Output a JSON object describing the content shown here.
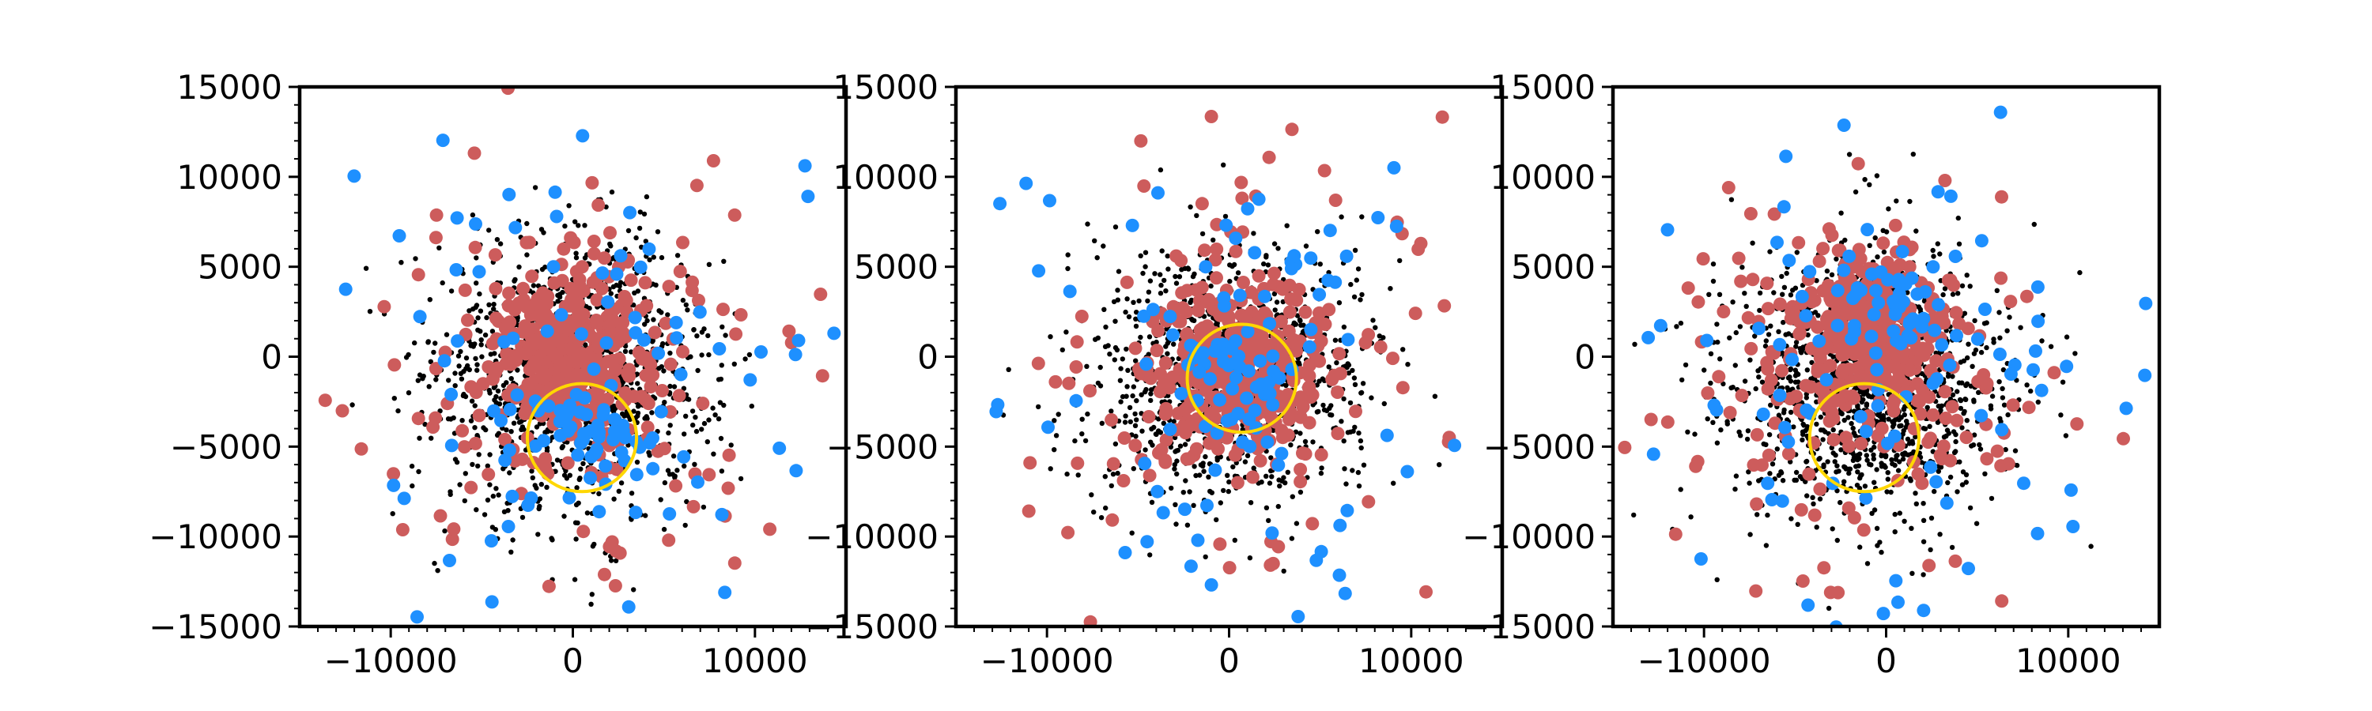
{
  "chart_data": [
    {
      "type": "scatter",
      "title": "",
      "xlabel": "",
      "ylabel": "",
      "xlim": [
        -15000,
        15000
      ],
      "ylim": [
        -15000,
        15000
      ],
      "xticks": [
        -10000,
        0,
        10000
      ],
      "xtick_labels": [
        "−10000",
        "0",
        "10000"
      ],
      "yticks": [
        -15000,
        -10000,
        -5000,
        0,
        5000,
        10000,
        15000
      ],
      "ytick_labels": [
        "−15000",
        "−10000",
        "−5000",
        "0",
        "5000",
        "10000",
        "15000"
      ],
      "grid": false,
      "circle": {
        "cx": 500,
        "cy": -4500,
        "r": 3000
      },
      "distributions": [
        {
          "color": "#000000",
          "count": 1300,
          "center": [
            0,
            -1000
          ],
          "spread": 3800
        },
        {
          "color": "#cd5c5c",
          "count": 300,
          "center": [
            0,
            0
          ],
          "spread": 2200
        },
        {
          "color": "#cd5c5c",
          "count": 150,
          "center": [
            0,
            -1000
          ],
          "spread": 5500
        },
        {
          "color": "#1e90ff",
          "count": 90,
          "center": [
            0,
            -1000
          ],
          "spread": 6500
        },
        {
          "color": "#1e90ff",
          "count": 40,
          "center": [
            500,
            -4000
          ],
          "spread": 1200
        }
      ]
    },
    {
      "type": "scatter",
      "title": "",
      "xlabel": "",
      "ylabel": "",
      "xlim": [
        -15000,
        15000
      ],
      "ylim": [
        -15000,
        15000
      ],
      "xticks": [
        -10000,
        0,
        10000
      ],
      "xtick_labels": [
        "−10000",
        "0",
        "10000"
      ],
      "yticks": [
        -15000,
        -10000,
        -5000,
        0,
        5000,
        10000,
        15000
      ],
      "ytick_labels": [
        "−15000",
        "−10000",
        "−5000",
        "0",
        "5000",
        "10000",
        "15000"
      ],
      "grid": false,
      "circle": {
        "cx": 700,
        "cy": -1200,
        "r": 3000
      },
      "distributions": [
        {
          "color": "#000000",
          "count": 1100,
          "center": [
            0,
            -1000
          ],
          "spread": 3600
        },
        {
          "color": "#cd5c5c",
          "count": 330,
          "center": [
            500,
            -1000
          ],
          "spread": 2200
        },
        {
          "color": "#cd5c5c",
          "count": 150,
          "center": [
            0,
            -1000
          ],
          "spread": 5500
        },
        {
          "color": "#1e90ff",
          "count": 80,
          "center": [
            0,
            -1000
          ],
          "spread": 6000
        },
        {
          "color": "#1e90ff",
          "count": 40,
          "center": [
            500,
            -1000
          ],
          "spread": 1300
        }
      ]
    },
    {
      "type": "scatter",
      "title": "",
      "xlabel": "",
      "ylabel": "",
      "xlim": [
        -15000,
        15000
      ],
      "ylim": [
        -15000,
        15000
      ],
      "xticks": [
        -10000,
        0,
        10000
      ],
      "xtick_labels": [
        "−10000",
        "0",
        "10000"
      ],
      "yticks": [
        -15000,
        -10000,
        -5000,
        0,
        5000,
        10000,
        15000
      ],
      "ytick_labels": [
        "−15000",
        "−10000",
        "−5000",
        "0",
        "5000",
        "10000",
        "15000"
      ],
      "grid": false,
      "circle": {
        "cx": -1200,
        "cy": -4500,
        "r": 3000
      },
      "distributions": [
        {
          "color": "#000000",
          "count": 1400,
          "center": [
            -1000,
            -1500
          ],
          "spread": 3800
        },
        {
          "color": "#cd5c5c",
          "count": 300,
          "center": [
            -1000,
            1000
          ],
          "spread": 2200
        },
        {
          "color": "#cd5c5c",
          "count": 150,
          "center": [
            -1000,
            -2000
          ],
          "spread": 5500
        },
        {
          "color": "#1e90ff",
          "count": 90,
          "center": [
            -1000,
            -1000
          ],
          "spread": 6500
        },
        {
          "color": "#1e90ff",
          "count": 40,
          "center": [
            -500,
            3000
          ],
          "spread": 1500
        }
      ]
    }
  ],
  "colors": {
    "background": "#ffffff",
    "axes": "#000000",
    "points_black": "#000000",
    "points_red": "#cd5c5c",
    "points_blue": "#1e90ff",
    "circle": "#ffd700"
  }
}
